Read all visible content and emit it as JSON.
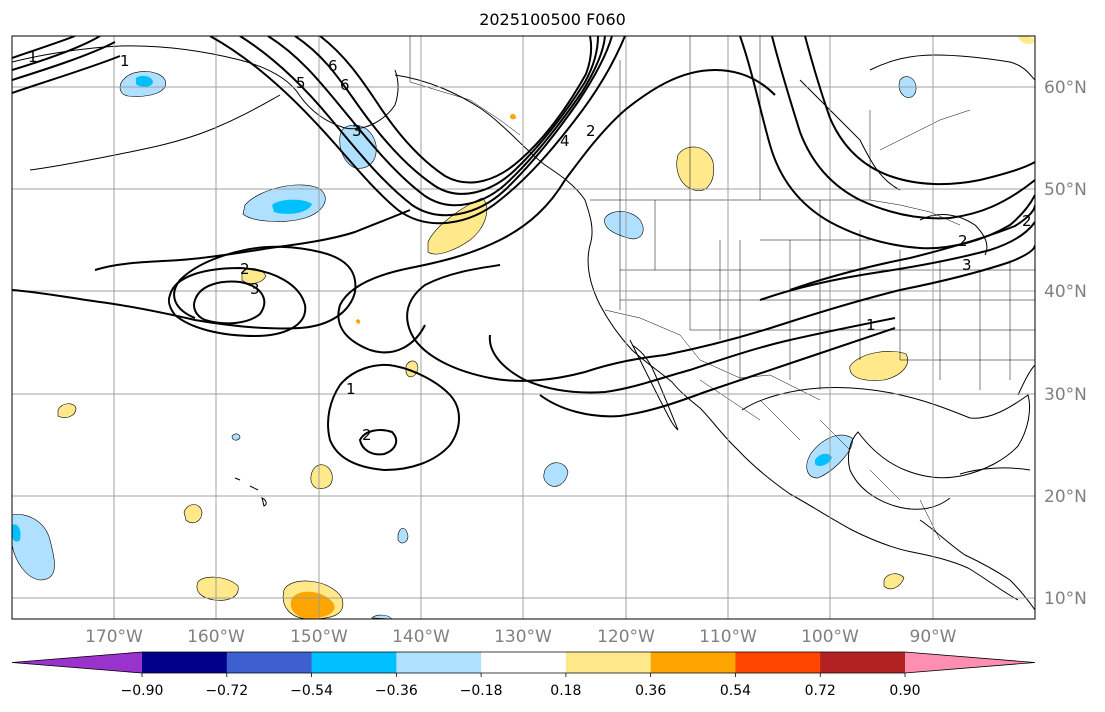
{
  "title": "2025100500 F060",
  "map": {
    "projection": "equirectangular",
    "lon_range": [
      -180,
      -80
    ],
    "lat_range": [
      8,
      65
    ],
    "gridline_color": "#999999",
    "contour_color": "#000000",
    "lon_labels": [
      "170°W",
      "160°W",
      "150°W",
      "140°W",
      "130°W",
      "120°W",
      "110°W",
      "100°W",
      "90°W"
    ],
    "lat_labels": [
      "60°N",
      "50°N",
      "40°N",
      "30°N",
      "20°N",
      "10°N"
    ],
    "axis_label_color": "#808080",
    "contour_labels": [
      "6",
      "6",
      "5",
      "4",
      "3",
      "2",
      "1",
      "3",
      "2",
      "1",
      "2",
      "1",
      "2",
      "3",
      "2",
      "1"
    ]
  },
  "colorbar": {
    "colors": [
      "#9933cc",
      "#00008b",
      "#3e5fcf",
      "#00bfff",
      "#b0e0ff",
      "#ffffff",
      "#ffe98a",
      "#ffa500",
      "#ff4500",
      "#b22222",
      "#ff8fb0"
    ],
    "tick_labels": [
      "−0.90",
      "−0.72",
      "−0.54",
      "−0.36",
      "−0.18",
      "0.18",
      "0.36",
      "0.54",
      "0.72",
      "0.90"
    ]
  }
}
